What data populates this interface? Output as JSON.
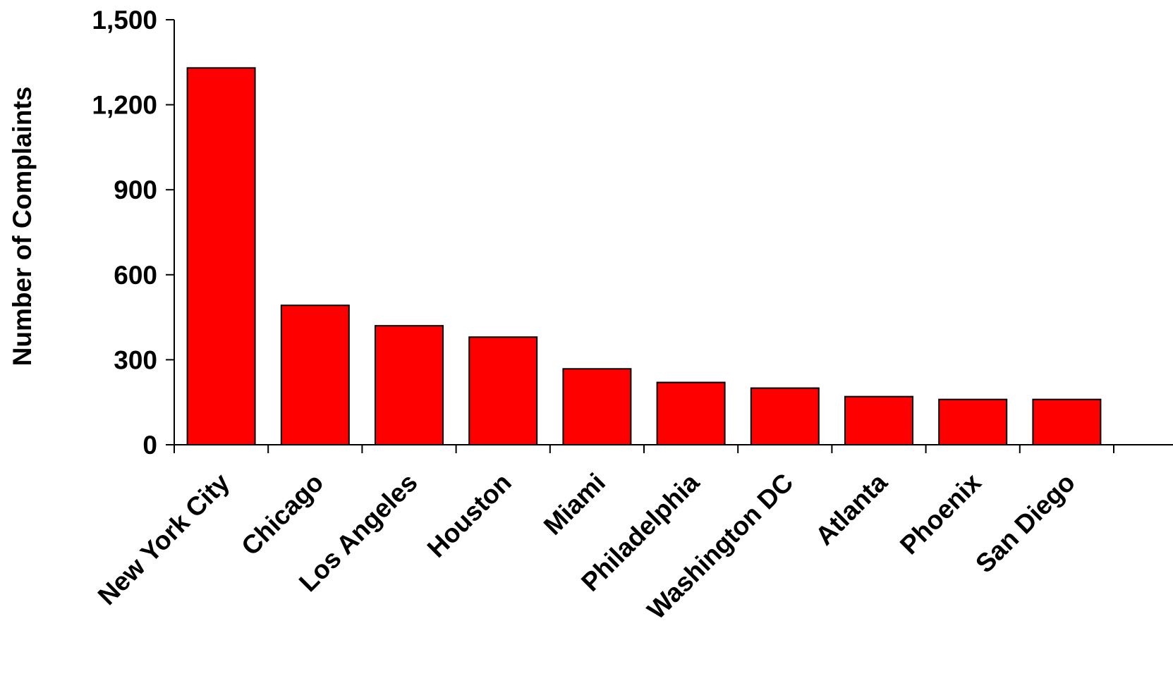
{
  "chart_data": {
    "type": "bar",
    "title": "",
    "xlabel": "",
    "ylabel": "Number of Complaints",
    "categories": [
      "New York City",
      "Chicago",
      "Los Angeles",
      "Houston",
      "Miami",
      "Philadelphia",
      "Washington DC",
      "Atlanta",
      "Phoenix",
      "San Diego"
    ],
    "values": [
      1330,
      492,
      420,
      380,
      268,
      220,
      200,
      170,
      160,
      160
    ],
    "ylim": [
      0,
      1500
    ],
    "yticks": [
      0,
      300,
      600,
      900,
      1200,
      1500
    ],
    "ytick_labels": [
      "0",
      "300",
      "600",
      "900",
      "1,200",
      "1,500"
    ],
    "grid": false,
    "legend": "none",
    "bar_color": "#ff0000",
    "bar_edge_color": "#000000"
  }
}
